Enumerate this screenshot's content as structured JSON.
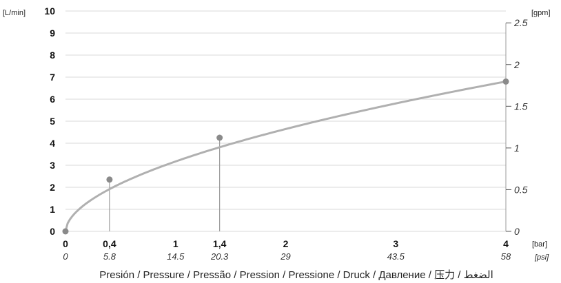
{
  "chart_data": {
    "type": "line",
    "xlabel": "Presión / Pressure / Pressão / Pression / Pressione / Druck / Давление / 压力 / الضغط",
    "left_unit": "[L/min]",
    "right_unit": "[gpm]",
    "bar_unit": "[bar]",
    "psi_unit": "[psi]",
    "ylim": [
      0,
      10
    ],
    "xlim": [
      0,
      4
    ],
    "grid": true,
    "y_ticks": [
      "0",
      "1",
      "2",
      "3",
      "4",
      "5",
      "6",
      "7",
      "8",
      "9",
      "10"
    ],
    "y_right_ticks": [
      {
        "label": "0",
        "value": 0
      },
      {
        "label": "0.5",
        "value": 0.5
      },
      {
        "label": "1",
        "value": 1
      },
      {
        "label": "1.5",
        "value": 1.5
      },
      {
        "label": "2",
        "value": 2
      },
      {
        "label": "2.5",
        "value": 2.5
      }
    ],
    "x_ticks": [
      {
        "bar": "0",
        "psi": "0",
        "value": 0,
        "bold": true
      },
      {
        "bar": "0,4",
        "psi": "5.8",
        "value": 0.4,
        "bold": true
      },
      {
        "bar": "1",
        "psi": "14.5",
        "value": 1,
        "bold": false
      },
      {
        "bar": "1,4",
        "psi": "20.3",
        "value": 1.4,
        "bold": true
      },
      {
        "bar": "2",
        "psi": "29",
        "value": 2,
        "bold": false
      },
      {
        "bar": "3",
        "psi": "43.5",
        "value": 3,
        "bold": false
      },
      {
        "bar": "4",
        "psi": "58",
        "value": 4,
        "bold": true
      }
    ],
    "points": [
      {
        "x": 0,
        "y": 0
      },
      {
        "x": 0.4,
        "y": 2.35
      },
      {
        "x": 1.4,
        "y": 4.25
      },
      {
        "x": 4,
        "y": 6.8
      }
    ],
    "curve_exponent": 0.55,
    "colors": {
      "curve": "#b0b0b0",
      "marker": "#8a8a8a",
      "grid": "#d9d9d9",
      "drop_line": "#9a9a9a"
    }
  }
}
